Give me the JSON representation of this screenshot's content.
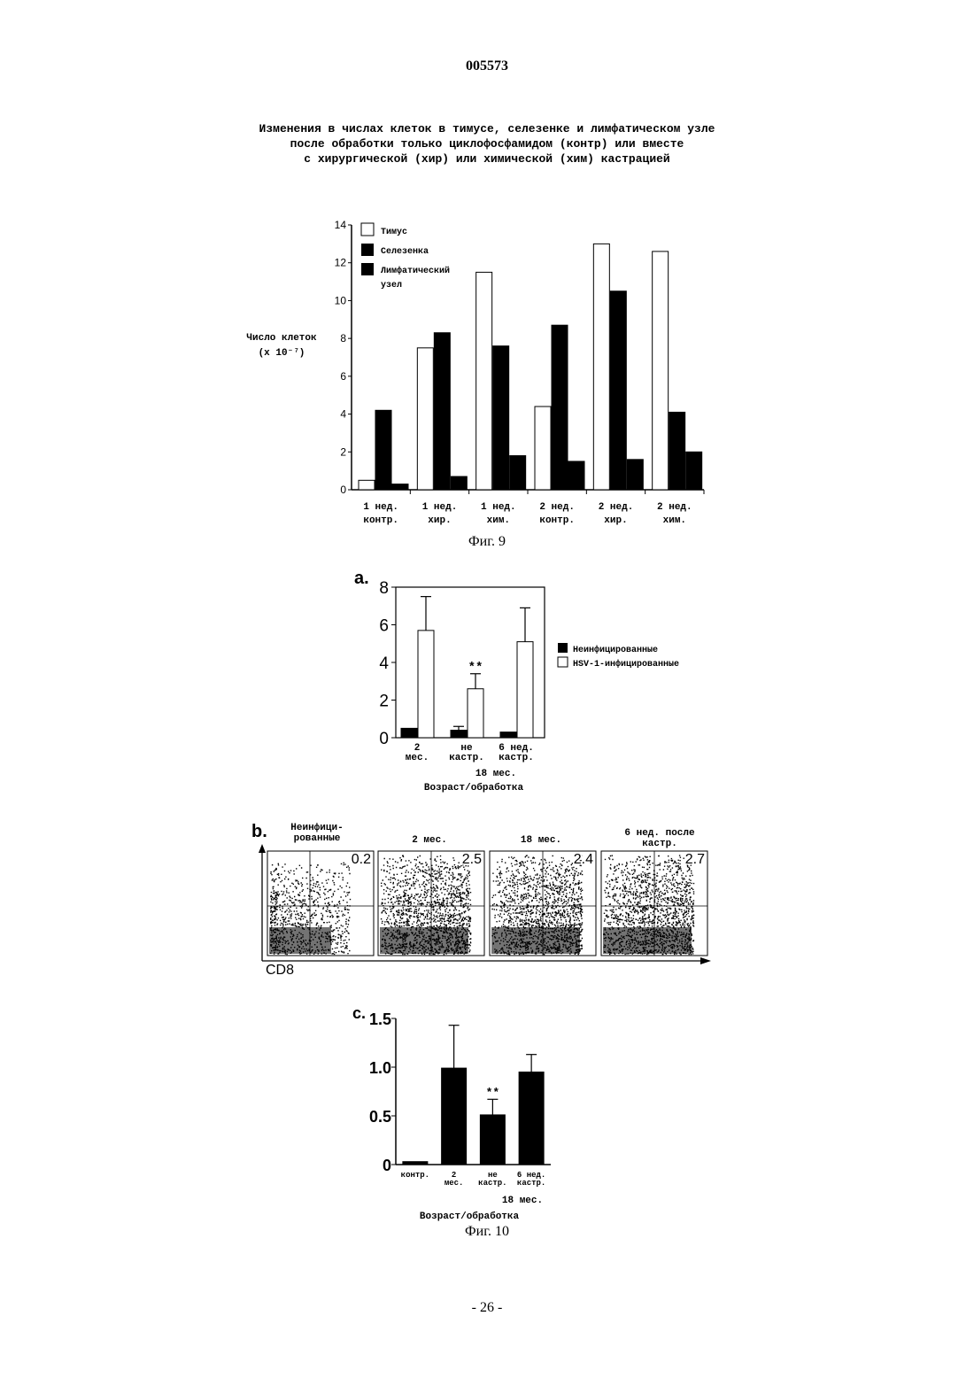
{
  "header": {
    "page_number": "005573"
  },
  "fig9": {
    "title_lines": [
      "Изменения в числах клеток в тимусе, селезенке и лимфатическом узле",
      "после обработки только циклофосфамидом (контр) или вместе",
      "с хирургической (хир) или химической (хим) кастрацией"
    ],
    "caption": "Фиг. 9"
  },
  "fig10": {
    "panel_a_label": "a.",
    "panel_b_label": "b.",
    "panel_c_label": "c.",
    "caption": "Фиг. 10",
    "flow": {
      "axis_label": "CD8",
      "plots": [
        {
          "label_line1": "Неинфици-",
          "label_line2": "рованные",
          "value": "0.2"
        },
        {
          "label_line1": "2 мес.",
          "label_line2": "",
          "value": "2.5"
        },
        {
          "label_line1": "18 мес.",
          "label_line2": "",
          "value": "2.4"
        },
        {
          "label_line1": "6 нед. после",
          "label_line2": "кастр.",
          "value": "2.7"
        }
      ]
    }
  },
  "footer": {
    "page_label": "- 26 -"
  },
  "chart_data": [
    {
      "type": "bar",
      "ylabel": "Число клеток (x 10⁻⁷)",
      "ylabel_line1": "Число клеток",
      "ylabel_line2": "(x 10⁻⁷)",
      "ylim": [
        0,
        14
      ],
      "yticks": [
        "0",
        "2",
        "4",
        "6",
        "8",
        "10",
        "12",
        "14"
      ],
      "legend_position": "top-left",
      "categories": [
        [
          "1 нед.",
          "контр."
        ],
        [
          "1 нед.",
          "хир."
        ],
        [
          "1 нед.",
          "хим."
        ],
        [
          "2 нед.",
          "контр."
        ],
        [
          "2 нед.",
          "хир."
        ],
        [
          "2 нед.",
          "хим."
        ]
      ],
      "series": [
        {
          "name": "Тимус",
          "color": "#ffffff",
          "values": [
            0.5,
            7.5,
            11.5,
            4.4,
            13.0,
            12.6
          ]
        },
        {
          "name": "Селезенка",
          "color": "#000000",
          "values": [
            4.2,
            8.3,
            7.6,
            8.7,
            10.5,
            4.1
          ]
        },
        {
          "name": "Лимфатический узел",
          "name_line1": "Лимфатический",
          "name_line2": "узел",
          "color": "#000000",
          "values": [
            0.3,
            0.7,
            1.8,
            1.5,
            1.6,
            2.0
          ]
        }
      ]
    },
    {
      "type": "bar",
      "panel": "a",
      "ylim": [
        0,
        8
      ],
      "yticks": [
        "0",
        "2",
        "4",
        "6",
        "8"
      ],
      "xlabel": "Возраст/обработка",
      "group_label": "18 мес.",
      "legend_position": "right",
      "categories": [
        [
          "2",
          "мес."
        ],
        [
          "не",
          "кастр."
        ],
        [
          "6 нед.",
          "кастр."
        ]
      ],
      "series": [
        {
          "name": "Неинфицированные",
          "color": "#000000",
          "values": [
            0.5,
            0.4,
            0.3
          ],
          "errors": [
            0,
            0.2,
            0
          ]
        },
        {
          "name": "HSV-1-инфицированные",
          "color": "#ffffff",
          "values": [
            5.7,
            2.6,
            5.1
          ],
          "errors": [
            1.8,
            0.8,
            1.8
          ]
        }
      ],
      "annotations": [
        {
          "text": "**",
          "category": 1
        }
      ]
    },
    {
      "type": "bar",
      "panel": "c",
      "ylim": [
        0,
        1.5
      ],
      "yticks": [
        "0",
        "0.5",
        "1.0",
        "1.5"
      ],
      "xlabel": "Возраст/обработка",
      "group_label": "18 мес.",
      "categories": [
        [
          "контр.",
          ""
        ],
        [
          "2",
          "мес."
        ],
        [
          "не",
          "кастр."
        ],
        [
          "6 нед.",
          "кастр."
        ]
      ],
      "series": [
        {
          "name": "",
          "color": "#000000",
          "values": [
            0.03,
            0.99,
            0.51,
            0.95
          ],
          "errors": [
            0,
            0.44,
            0.16,
            0.18
          ]
        }
      ],
      "annotations": [
        {
          "text": "**",
          "category": 2
        }
      ]
    }
  ]
}
